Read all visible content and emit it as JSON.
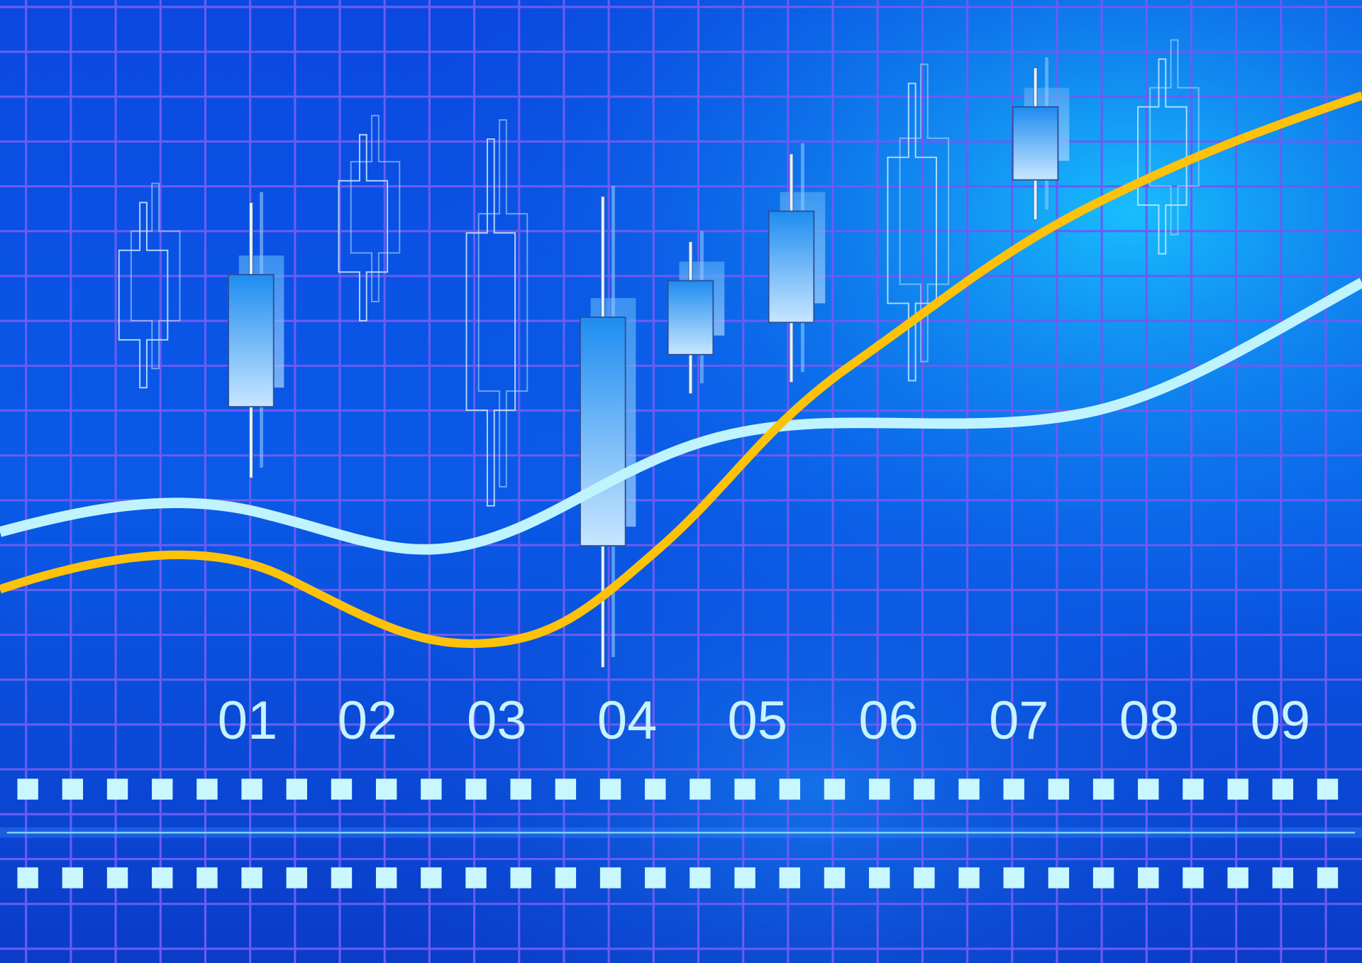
{
  "labels": [
    "01",
    "02",
    "03",
    "04",
    "05",
    "06",
    "07",
    "08",
    "09"
  ]
}
